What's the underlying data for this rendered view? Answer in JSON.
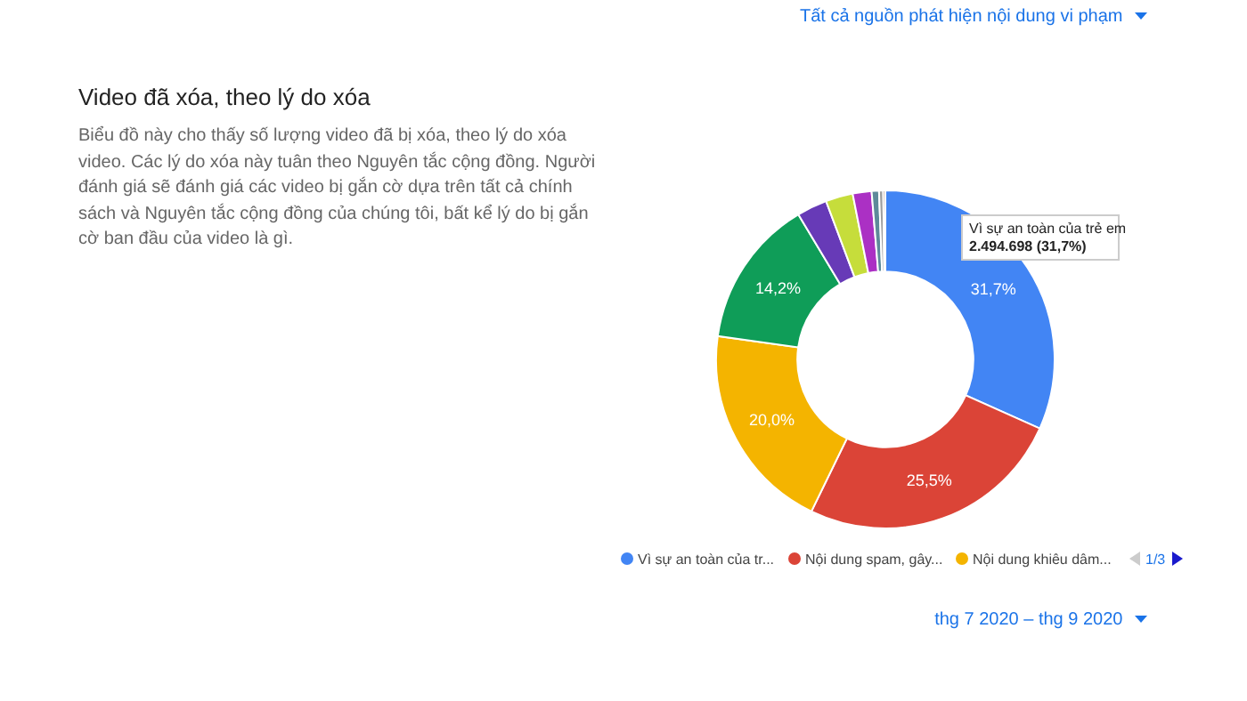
{
  "chart_data": {
    "type": "donut",
    "title": "Video đã xóa, theo lý do xóa",
    "subtitle": "Biểu đồ này cho thấy số lượng video đã bị xóa, theo lý do xóa video. Các lý do xóa này tuân theo Nguyên tắc cộng đồng. Người đánh giá sẽ đánh giá các video bị gắn cờ dựa trên tất cả chính sách và Nguyên tắc cộng đồng của chúng tôi, bất kể lý do bị gắn cờ ban đầu của video là gì.",
    "categories": [
      "Vì sự an toàn của tr...",
      "Nội dung spam, gây...",
      "Nội dung khiêu dâm...",
      null,
      null,
      null,
      null,
      null,
      null,
      null
    ],
    "values": [
      31.7,
      25.5,
      20.0,
      14.2,
      2.9,
      2.6,
      1.8,
      0.7,
      0.4,
      0.2
    ],
    "colors": [
      "#4285f4",
      "#db4437",
      "#f4b400",
      "#0f9d58",
      "#673ab7",
      "#c6dd3b",
      "#ab30c4",
      "#5e8a9a",
      "#9e9e9e",
      "#8d5a3c"
    ],
    "value_labels": [
      "31,7%",
      "25,5%",
      "20,0%",
      "14,2%",
      null,
      null,
      null,
      null,
      null,
      null
    ],
    "legend": "bottom",
    "annotations": [
      "Vì sự an toàn của trẻ em\n2.494.698 (31,7%)",
      "1/3",
      "Tất cả nguồn phát hiện nội dung vi phạm",
      "thg 7 2020 – thg 9 2020"
    ]
  }
}
